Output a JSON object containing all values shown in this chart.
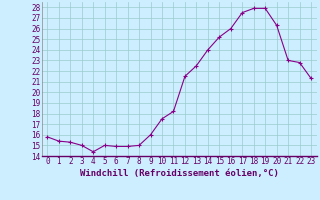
{
  "x": [
    0,
    1,
    2,
    3,
    4,
    5,
    6,
    7,
    8,
    9,
    10,
    11,
    12,
    13,
    14,
    15,
    16,
    17,
    18,
    19,
    20,
    21,
    22,
    23
  ],
  "y": [
    15.8,
    15.4,
    15.3,
    15.0,
    14.4,
    15.0,
    14.9,
    14.9,
    15.0,
    16.0,
    17.5,
    18.2,
    21.5,
    22.5,
    24.0,
    25.2,
    26.0,
    27.5,
    27.9,
    27.9,
    26.3,
    23.0,
    22.8,
    21.3
  ],
  "line_color": "#880088",
  "marker": "o",
  "marker_size": 2.0,
  "bg_color": "#cceeff",
  "grid_color": "#99cccc",
  "xlabel": "Windchill (Refroidissement éolien,°C)",
  "ylim": [
    14,
    28.5
  ],
  "xlim": [
    -0.5,
    23.5
  ],
  "yticks": [
    14,
    15,
    16,
    17,
    18,
    19,
    20,
    21,
    22,
    23,
    24,
    25,
    26,
    27,
    28
  ],
  "xtick_labels": [
    "0",
    "1",
    "2",
    "3",
    "4",
    "5",
    "6",
    "7",
    "8",
    "9",
    "10",
    "11",
    "12",
    "13",
    "14",
    "15",
    "16",
    "17",
    "18",
    "19",
    "20",
    "21",
    "22",
    "23"
  ],
  "tick_fontsize": 5.5,
  "xlabel_fontsize": 6.5,
  "line_width": 0.8
}
